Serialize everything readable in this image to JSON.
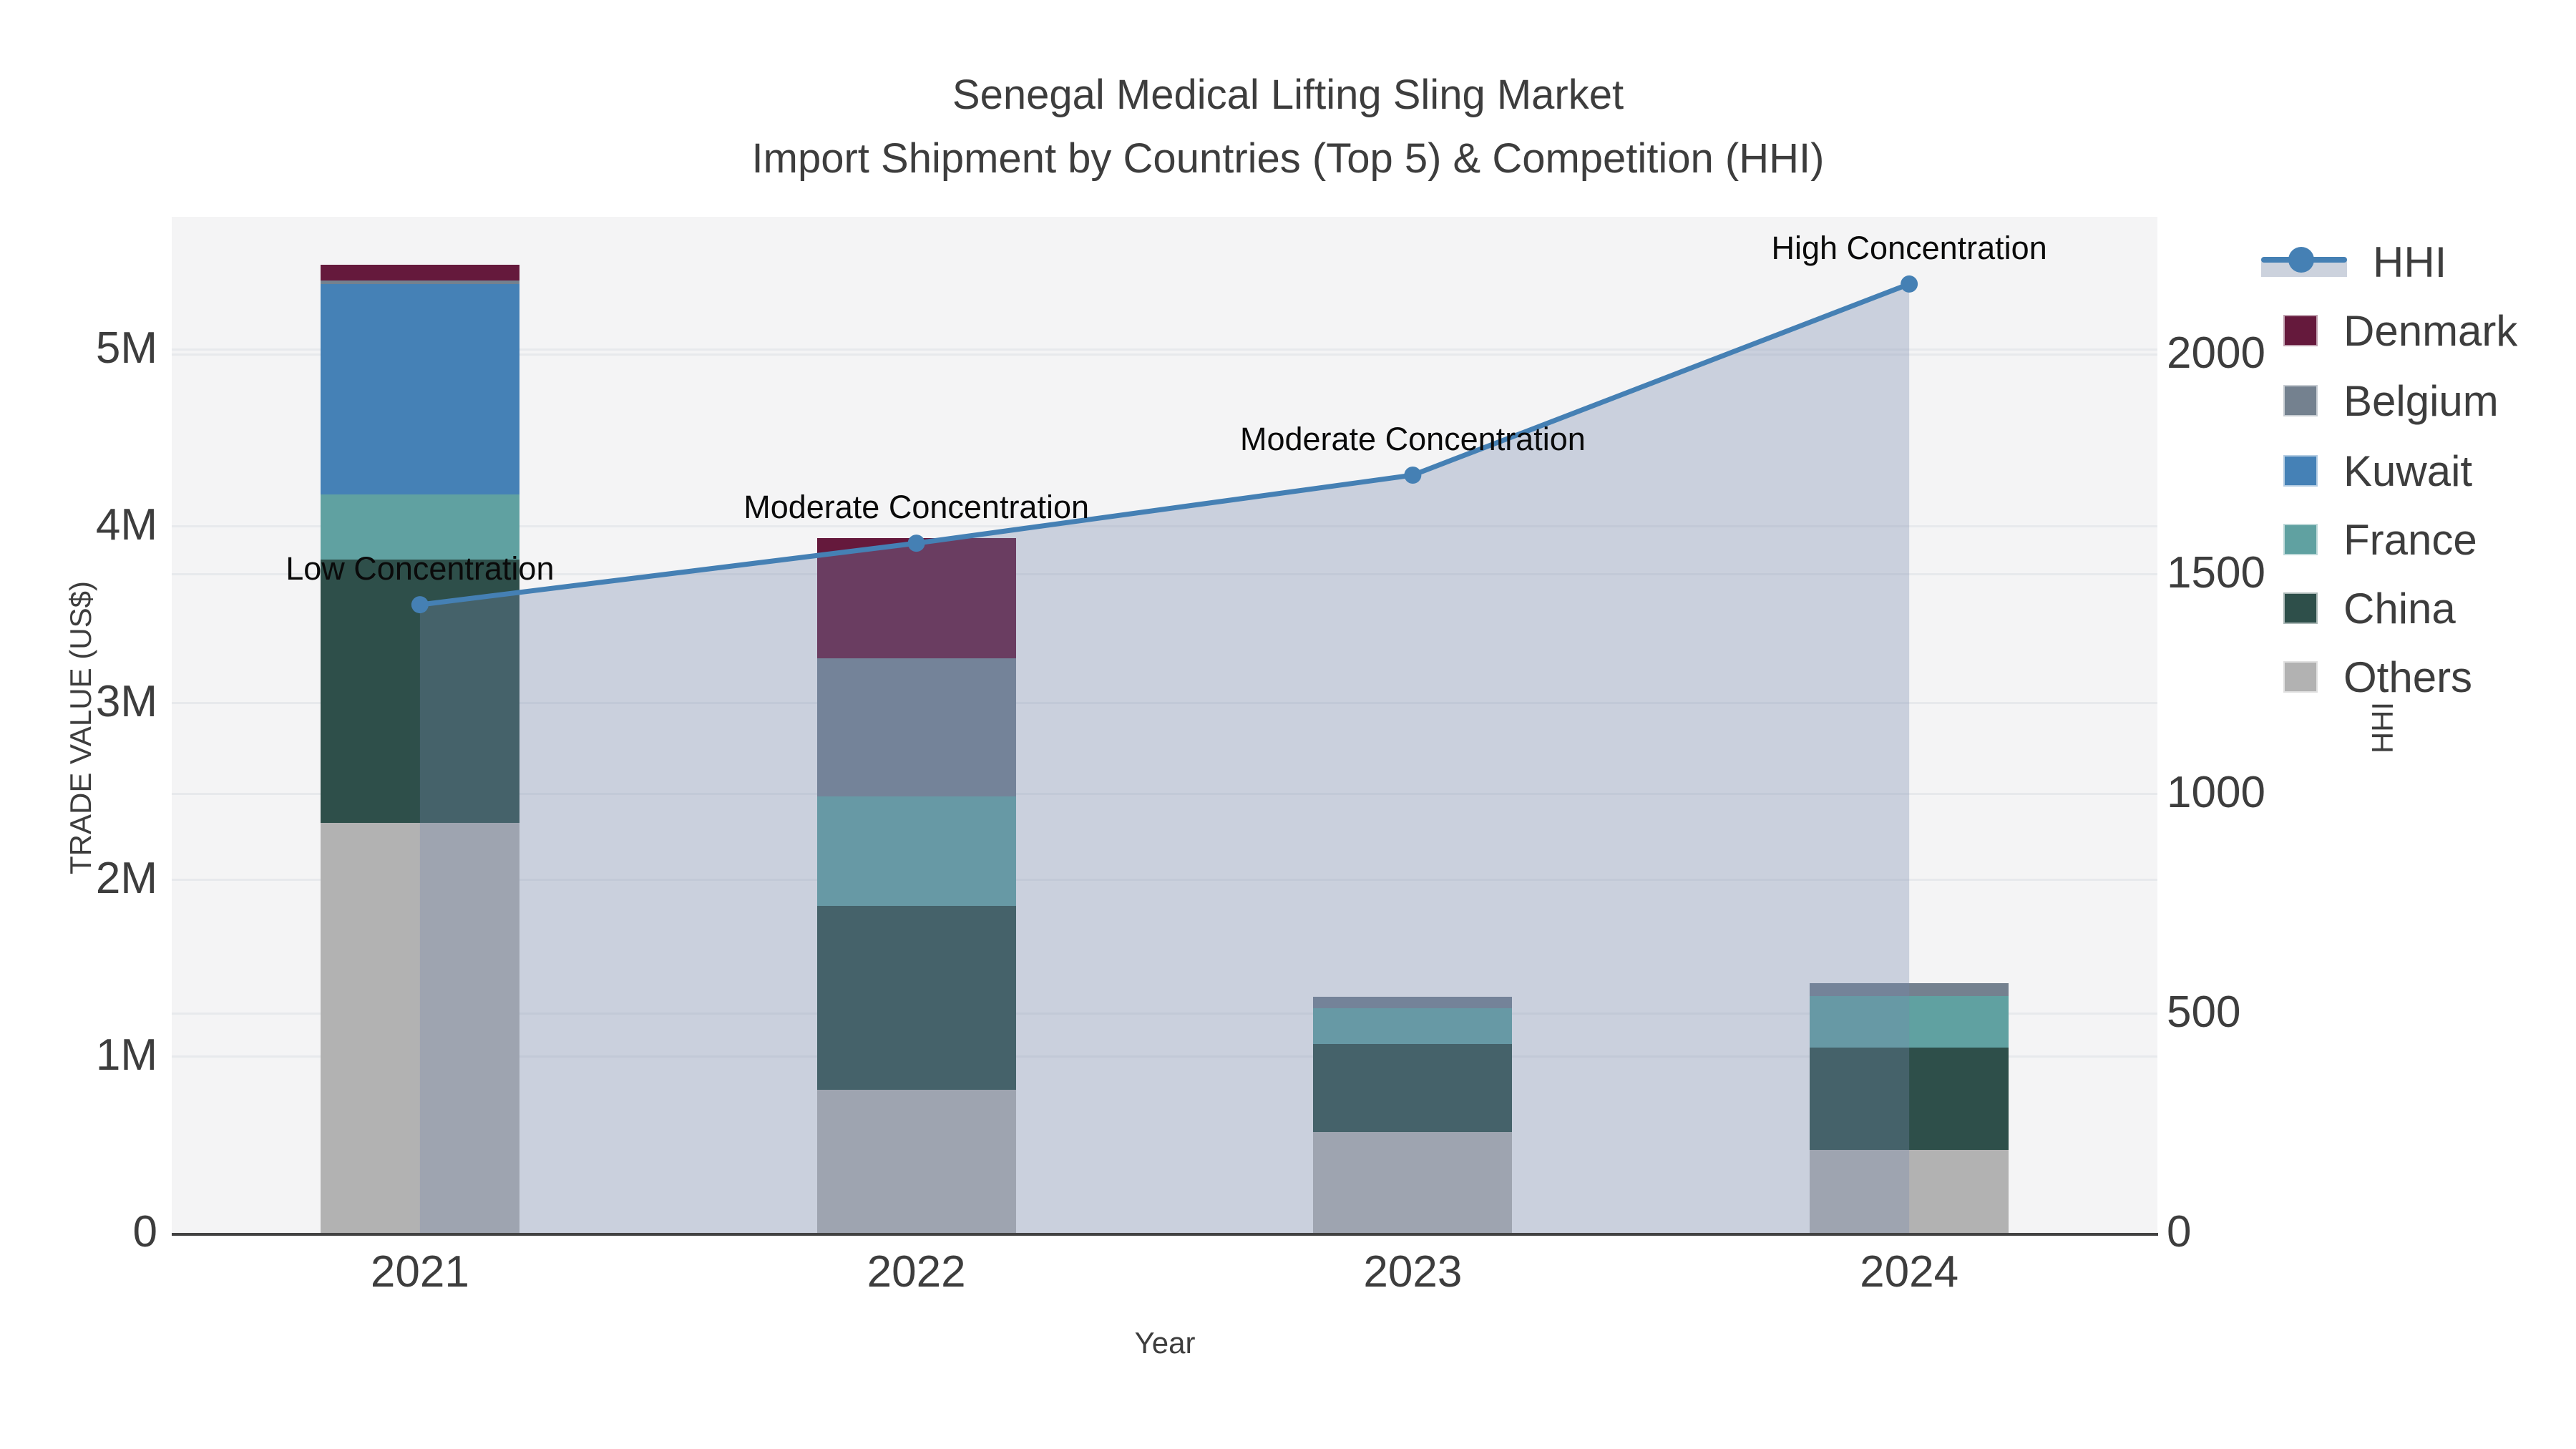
{
  "title": {
    "line1": "Senegal Medical Lifting Sling Market",
    "line2": "Import Shipment by Countries (Top 5) & Competition (HHI)"
  },
  "axes": {
    "left_title": "TRADE VALUE (US$)",
    "right_title": "HHI",
    "x_title": "Year"
  },
  "legend": {
    "items": [
      {
        "label": "HHI",
        "type": "line"
      },
      {
        "label": "Denmark",
        "type": "swatch",
        "color": "#65193c"
      },
      {
        "label": "Belgium",
        "type": "swatch",
        "color": "#74818f"
      },
      {
        "label": "Kuwait",
        "type": "swatch",
        "color": "#4581b6"
      },
      {
        "label": "France",
        "type": "swatch",
        "color": "#60a1a1"
      },
      {
        "label": "China",
        "type": "swatch",
        "color": "#2e4f4a"
      },
      {
        "label": "Others",
        "type": "swatch",
        "color": "#b2b2b2"
      }
    ]
  },
  "chart_data": {
    "type": "bar",
    "subtype": "stacked-bars-with-line",
    "title": "Senegal Medical Lifting Sling Market — Import Shipment by Countries (Top 5) & Competition (HHI)",
    "categories": [
      "2021",
      "2022",
      "2023",
      "2024"
    ],
    "series": [
      {
        "name": "Others",
        "color": "#b2b2b2",
        "values": [
          2320000,
          810000,
          570000,
          470000
        ]
      },
      {
        "name": "China",
        "color": "#2e4f4a",
        "values": [
          1490000,
          1040000,
          500000,
          580000
        ]
      },
      {
        "name": "France",
        "color": "#60a1a1",
        "values": [
          370000,
          620000,
          200000,
          290000
        ]
      },
      {
        "name": "Kuwait",
        "color": "#4581b6",
        "values": [
          1190000,
          0,
          0,
          0
        ]
      },
      {
        "name": "Belgium",
        "color": "#74818f",
        "values": [
          20000,
          780000,
          65000,
          75000
        ]
      },
      {
        "name": "Denmark",
        "color": "#65193c",
        "values": [
          90000,
          680000,
          0,
          0
        ]
      }
    ],
    "line_series": {
      "name": "HHI",
      "color": "#4580b4",
      "area_fill": "rgba(119,138,172,0.33)",
      "values": [
        1430,
        1570,
        1725,
        2160
      ]
    },
    "annotations": [
      {
        "x": "2021",
        "text": "Low Concentration"
      },
      {
        "x": "2022",
        "text": "Moderate Concentration"
      },
      {
        "x": "2023",
        "text": "Moderate Concentration"
      },
      {
        "x": "2024",
        "text": "High Concentration"
      }
    ],
    "xlabel": "Year",
    "ylabel": "TRADE VALUE (US$)",
    "y2label": "HHI",
    "ylim": [
      0,
      5750000
    ],
    "y2lim": [
      0,
      2313
    ],
    "left_ticks": [
      {
        "value": 0,
        "label": "0"
      },
      {
        "value": 1000000,
        "label": "1M"
      },
      {
        "value": 2000000,
        "label": "2M"
      },
      {
        "value": 3000000,
        "label": "3M"
      },
      {
        "value": 4000000,
        "label": "4M"
      },
      {
        "value": 5000000,
        "label": "5M"
      }
    ],
    "right_ticks": [
      {
        "value": 0,
        "label": "0"
      },
      {
        "value": 500,
        "label": "500"
      },
      {
        "value": 1000,
        "label": "1000"
      },
      {
        "value": 1500,
        "label": "1500"
      },
      {
        "value": 2000,
        "label": "2000"
      }
    ],
    "grid": true,
    "legend_position": "right"
  }
}
